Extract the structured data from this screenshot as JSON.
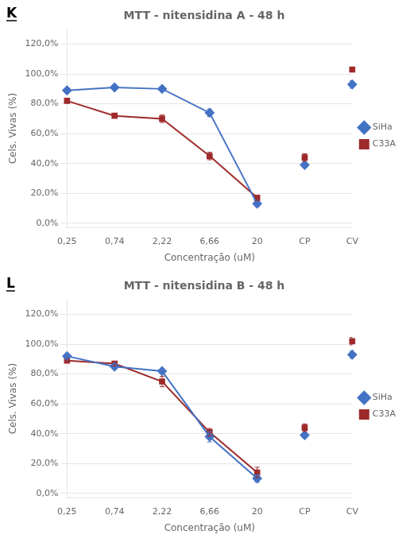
{
  "chart_data": [
    {
      "type": "line",
      "title": "MTT - nitensidina A - 48 h",
      "annotations": [
        "K"
      ],
      "x_label": "Concentração (uM)",
      "y_label": "Cels. Vivas (%)",
      "categories": [
        "0,25",
        "0,74",
        "2,22",
        "6,66",
        "20",
        "CP",
        "CV"
      ],
      "series": [
        {
          "name": "SiHa",
          "color": "#4472C4",
          "marker": "diamond",
          "values": [
            0.89,
            0.91,
            0.9,
            0.74,
            0.13,
            0.39,
            0.93
          ],
          "errors": [
            0.015,
            0.015,
            0.015,
            0.025,
            0.018,
            0.018,
            0.025
          ]
        },
        {
          "name": "C33A",
          "color": "#9E2A2B",
          "marker": "square",
          "values": [
            0.82,
            0.72,
            0.7,
            0.45,
            0.17,
            0.44,
            1.03
          ],
          "errors": [
            0.015,
            0.015,
            0.025,
            0.025,
            0.018,
            0.025,
            0.015
          ]
        }
      ],
      "ylim": [
        -0.03,
        1.3
      ],
      "yticks": [
        {
          "value": 0.0,
          "label": "0,0%"
        },
        {
          "value": 0.2,
          "label": "20,0%"
        },
        {
          "value": 0.4,
          "label": "40,0%"
        },
        {
          "value": 0.6,
          "label": "60,0%"
        },
        {
          "value": 0.8,
          "label": "80,0%"
        },
        {
          "value": 1.0,
          "label": "100,0%"
        },
        {
          "value": 1.2,
          "label": "120,0%"
        }
      ],
      "grid": true,
      "legend": "right"
    },
    {
      "type": "line",
      "title": "MTT - nitensidina B - 48 h",
      "annotations": [
        "L"
      ],
      "x_label": "Concentração (uM)",
      "y_label": "Cels. Vivas (%)",
      "categories": [
        "0,25",
        "0,74",
        "2,22",
        "6,66",
        "20",
        "CP",
        "CV"
      ],
      "series": [
        {
          "name": "SiHa",
          "color": "#4472C4",
          "marker": "diamond",
          "values": [
            0.92,
            0.85,
            0.82,
            0.38,
            0.1,
            0.39,
            0.93
          ],
          "errors": [
            0.015,
            0.015,
            0.015,
            0.035,
            0.025,
            0.018,
            0.025
          ]
        },
        {
          "name": "C33A",
          "color": "#9E2A2B",
          "marker": "square",
          "values": [
            0.89,
            0.87,
            0.75,
            0.41,
            0.14,
            0.44,
            1.02
          ],
          "errors": [
            0.015,
            0.015,
            0.035,
            0.025,
            0.035,
            0.025,
            0.025
          ]
        }
      ],
      "ylim": [
        -0.03,
        1.3
      ],
      "yticks": [
        {
          "value": 0.0,
          "label": "0,0%"
        },
        {
          "value": 0.2,
          "label": "20,0%"
        },
        {
          "value": 0.4,
          "label": "40,0%"
        },
        {
          "value": 0.6,
          "label": "60,0%"
        },
        {
          "value": 0.8,
          "label": "80,0%"
        },
        {
          "value": 1.0,
          "label": "100,0%"
        },
        {
          "value": 1.2,
          "label": "120,0%"
        }
      ],
      "grid": true,
      "legend": "right"
    }
  ]
}
